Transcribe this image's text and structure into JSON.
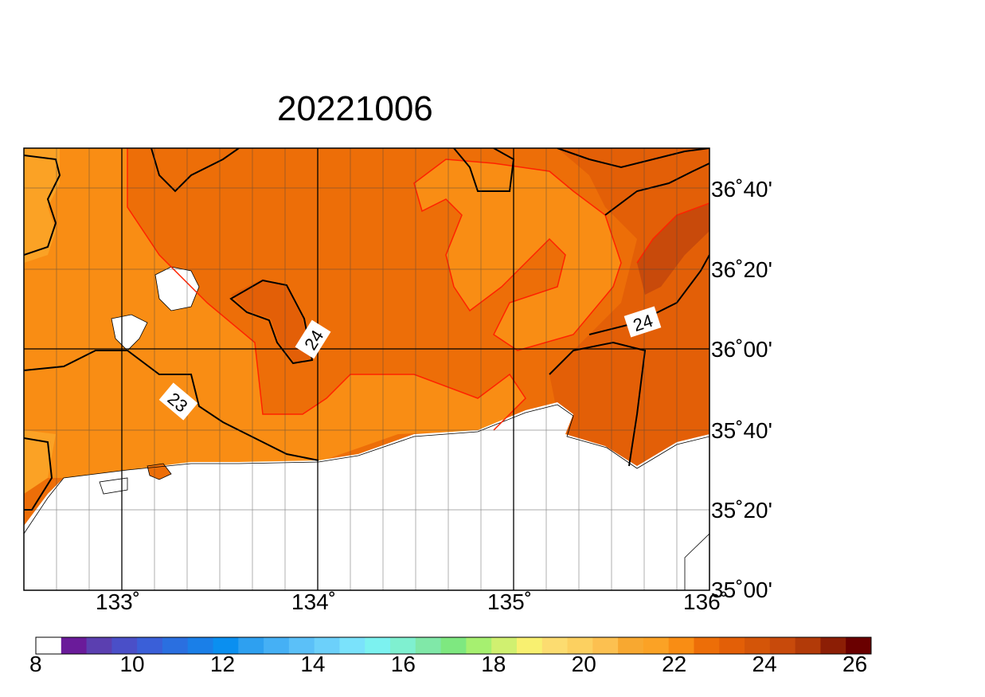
{
  "map": {
    "title": "20221006",
    "lat_labels": [
      "36˚40'",
      "36˚20'",
      "36˚00'",
      "35˚40'",
      "35˚20'",
      "35˚00'"
    ],
    "lon_labels": [
      "133˚",
      "134˚",
      "135˚",
      "136˚"
    ],
    "contour_labels": [
      "24",
      "24",
      "23"
    ],
    "colors": {
      "c21_22": "#fba225",
      "c22_23": "#f98d14",
      "c23_24": "#ed6e08",
      "c24_25": "#e35f07",
      "c25_26": "#c84a0b",
      "land_sea": "#ffffff",
      "contour_black": "#000000",
      "contour_red": "#ff2200"
    }
  },
  "colorbar": {
    "labels": [
      "8",
      "10",
      "12",
      "14",
      "16",
      "18",
      "20",
      "22",
      "24",
      "26"
    ],
    "colors": [
      "#ffffff",
      "#6a1b9a",
      "#5b3fb0",
      "#4a4fc8",
      "#3a5fd8",
      "#2a6fe0",
      "#1a7fe8",
      "#0a8ff0",
      "#2ea0f0",
      "#45b0f5",
      "#5bc0f8",
      "#6cd0fa",
      "#7ae2fb",
      "#7cf2f0",
      "#7ff0d0",
      "#80e8a8",
      "#7ee880",
      "#a6f070",
      "#d0f070",
      "#f8f070",
      "#fcdc70",
      "#fcd060",
      "#fcc050",
      "#f8a830",
      "#fba225",
      "#f98d14",
      "#ed6e08",
      "#e35f07",
      "#d45508",
      "#c84a0b",
      "#b23a08",
      "#8c1e05",
      "#6a0000"
    ]
  }
}
